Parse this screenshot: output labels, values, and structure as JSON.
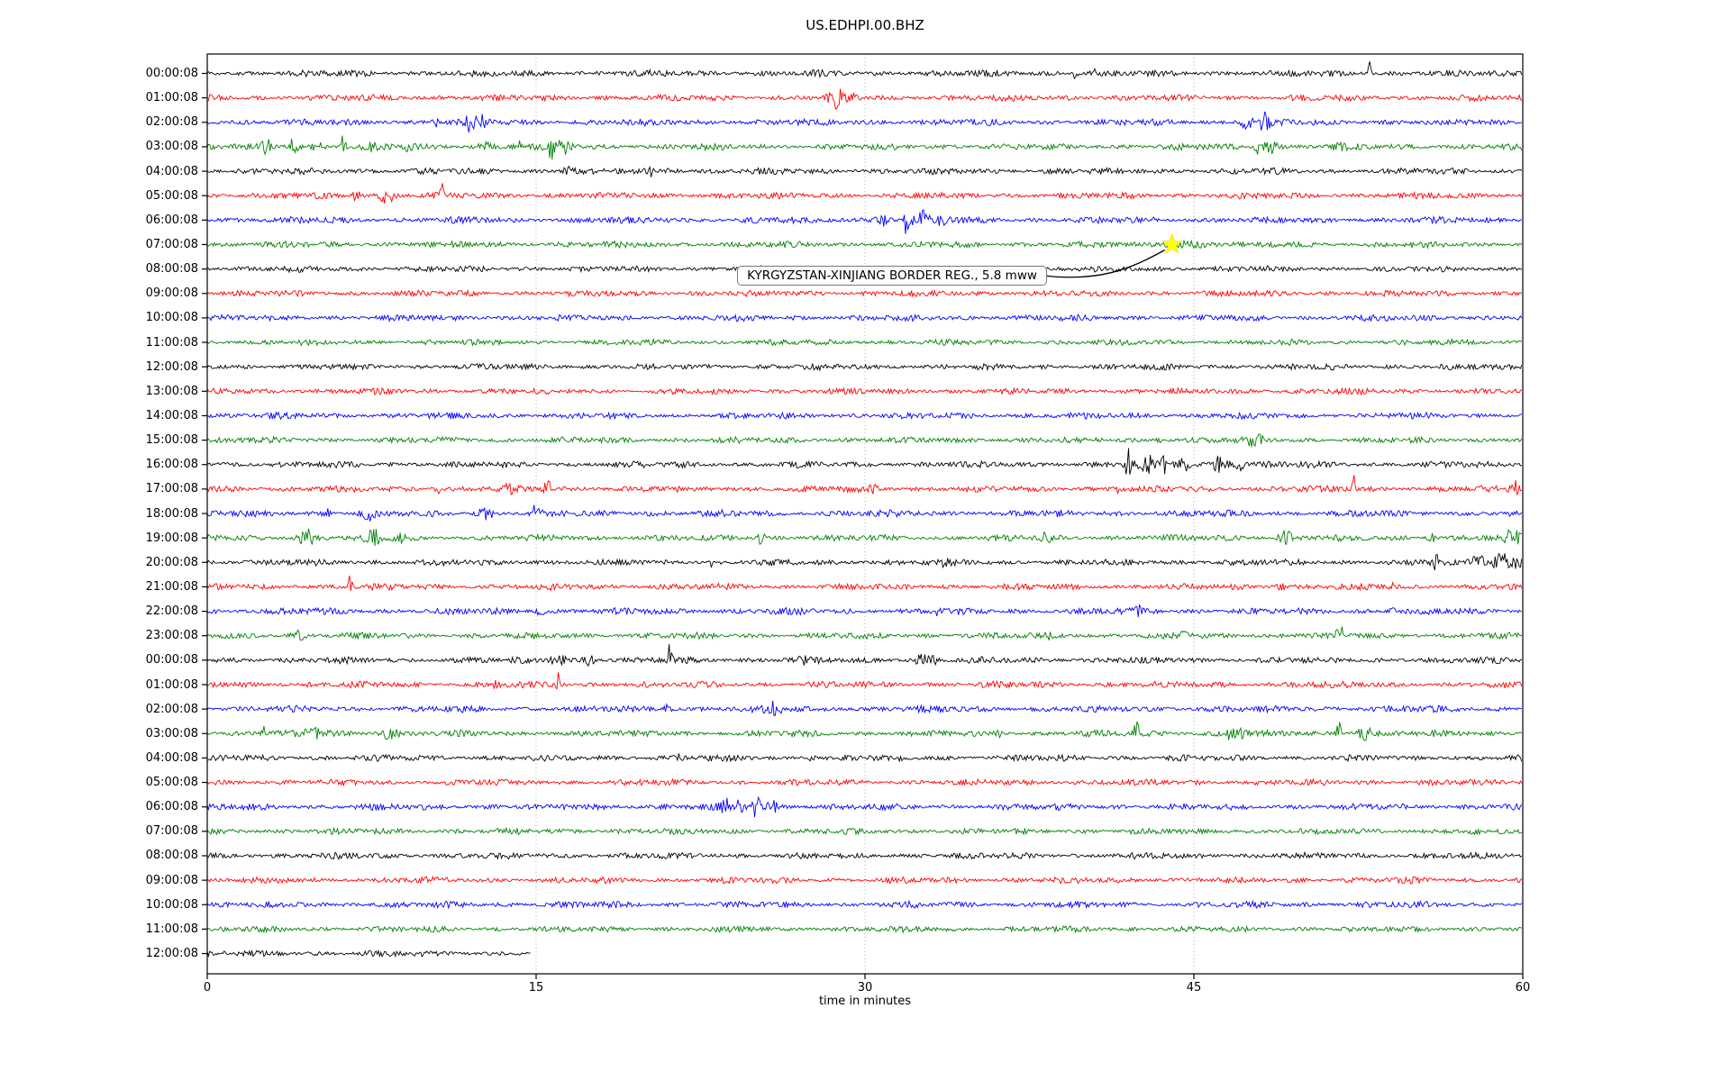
{
  "title": "US.EDHPI.00.BHZ",
  "xlabel": "time in minutes",
  "annotation": {
    "text": "KYRGYZSTAN-XINJIANG BORDER REG., 5.8 mww"
  },
  "colors": {
    "trace_cycle": [
      "#000000",
      "#ff0000",
      "#0000ff",
      "#008000"
    ],
    "grid": "#b5b5b5",
    "axis": "#000000",
    "star_fill": "#ffff00",
    "annotation_border": "#777777",
    "annotation_background": "#ffffff"
  },
  "chart_data": {
    "type": "line",
    "subtype": "seismogram-dayplot",
    "title": "US.EDHPI.00.BHZ",
    "xlabel": "time in minutes",
    "x_range": [
      0,
      60
    ],
    "xticks": [
      "0",
      "15",
      "30",
      "45",
      "60"
    ],
    "grid": "vertical dotted gridlines at 15-minute intervals",
    "legend": "none",
    "events": [
      {
        "label": "KYRGYZSTAN-XINJIANG BORDER REG., 5.8 mww",
        "row_index": 7,
        "row_label": "07:00:08",
        "minute": 44.0,
        "marker": "yellow-star"
      }
    ],
    "rows": [
      {
        "label": "00:00:08",
        "color": "#000000",
        "amp": 3.3,
        "features": [
          [
            39.6,
            0.07,
            13,
            -0.75
          ],
          [
            40.4,
            0.1,
            5,
            0.3
          ],
          [
            53.0,
            0.08,
            9,
            0.7
          ]
        ]
      },
      {
        "label": "01:00:08",
        "color": "#ff0000",
        "amp": 3.3,
        "features": [
          [
            28.7,
            0.3,
            9,
            0
          ],
          [
            29.4,
            0.15,
            5,
            0
          ]
        ]
      },
      {
        "label": "02:00:08",
        "color": "#0000ff",
        "amp": 3.4,
        "features": [
          [
            10.4,
            0.15,
            4,
            0
          ],
          [
            12.0,
            0.25,
            8,
            0
          ],
          [
            12.6,
            0.2,
            6,
            0
          ],
          [
            47.4,
            0.25,
            9,
            0
          ],
          [
            48.2,
            0.25,
            9,
            0
          ]
        ]
      },
      {
        "label": "03:00:08",
        "color": "#008000",
        "amp": 3.3,
        "features": [
          [
            2.7,
            0.25,
            7,
            0
          ],
          [
            3.9,
            0.25,
            8,
            0
          ],
          [
            5.0,
            0.25,
            5,
            0
          ],
          [
            6.2,
            0.1,
            10,
            0.4
          ],
          [
            7.5,
            0.2,
            5,
            0
          ],
          [
            9.2,
            0.2,
            5,
            0
          ],
          [
            12.6,
            0.3,
            5,
            0
          ],
          [
            14.2,
            0.2,
            5,
            0
          ],
          [
            15.7,
            0.09,
            22,
            -0.7
          ],
          [
            16.3,
            0.35,
            7,
            0
          ],
          [
            47.9,
            0.1,
            16,
            -0.4
          ],
          [
            48.5,
            0.35,
            7,
            0
          ],
          [
            51.6,
            0.25,
            6,
            0
          ]
        ]
      },
      {
        "label": "04:00:08",
        "color": "#000000",
        "amp": 3.3,
        "features": [
          [
            16.5,
            0.3,
            4,
            0
          ],
          [
            20.2,
            0.1,
            7,
            -0.4
          ],
          [
            21.2,
            0.2,
            4,
            0
          ]
        ]
      },
      {
        "label": "05:00:08",
        "color": "#ff0000",
        "amp": 3.3,
        "features": [
          [
            6.8,
            0.2,
            5,
            0
          ],
          [
            8.2,
            0.3,
            8,
            0
          ],
          [
            10.7,
            0.09,
            11,
            0.6
          ]
        ]
      },
      {
        "label": "06:00:08",
        "color": "#0000ff",
        "amp": 3.4,
        "features": [
          [
            30.8,
            0.3,
            6,
            0
          ],
          [
            31.9,
            0.1,
            26,
            -0.5
          ],
          [
            32.6,
            0.4,
            9,
            0
          ],
          [
            33.5,
            0.3,
            5,
            0
          ]
        ]
      },
      {
        "label": "07:00:08",
        "color": "#008000",
        "amp": 3.2,
        "features": [
          [
            44.5,
            1.2,
            2.5,
            0
          ]
        ]
      },
      {
        "label": "08:00:08",
        "color": "#000000",
        "amp": 3.1,
        "features": []
      },
      {
        "label": "09:00:08",
        "color": "#ff0000",
        "amp": 3.1,
        "features": []
      },
      {
        "label": "10:00:08",
        "color": "#0000ff",
        "amp": 3.2,
        "features": []
      },
      {
        "label": "11:00:08",
        "color": "#008000",
        "amp": 3.0,
        "features": []
      },
      {
        "label": "12:00:08",
        "color": "#000000",
        "amp": 3.1,
        "features": []
      },
      {
        "label": "13:00:08",
        "color": "#ff0000",
        "amp": 3.1,
        "features": []
      },
      {
        "label": "14:00:08",
        "color": "#0000ff",
        "amp": 3.2,
        "features": []
      },
      {
        "label": "15:00:08",
        "color": "#008000",
        "amp": 3.1,
        "features": [
          [
            43.5,
            0.3,
            3,
            0
          ],
          [
            47.8,
            0.4,
            5,
            0
          ]
        ]
      },
      {
        "label": "16:00:08",
        "color": "#000000",
        "amp": 3.3,
        "features": [
          [
            42.0,
            0.1,
            25,
            0.3
          ],
          [
            42.8,
            0.35,
            10,
            0
          ],
          [
            43.7,
            0.3,
            8,
            0
          ],
          [
            44.5,
            0.3,
            7,
            0
          ],
          [
            46.2,
            0.35,
            11,
            0
          ],
          [
            47.0,
            0.25,
            8,
            0
          ]
        ]
      },
      {
        "label": "17:00:08",
        "color": "#ff0000",
        "amp": 3.3,
        "features": [
          [
            10.5,
            0.2,
            4,
            0
          ],
          [
            13.7,
            0.2,
            6,
            0
          ],
          [
            15.5,
            0.15,
            9,
            0.3
          ],
          [
            30.4,
            0.2,
            5,
            0
          ],
          [
            41.5,
            0.15,
            4,
            0
          ],
          [
            52.3,
            0.07,
            11,
            0.7
          ],
          [
            59.8,
            0.25,
            12,
            0
          ]
        ]
      },
      {
        "label": "18:00:08",
        "color": "#0000ff",
        "amp": 3.4,
        "features": [
          [
            5.5,
            0.2,
            4,
            0
          ],
          [
            7.4,
            0.3,
            7,
            0
          ],
          [
            12.7,
            0.3,
            7,
            0
          ],
          [
            15.0,
            0.2,
            8,
            0
          ],
          [
            20.3,
            0.2,
            4,
            0
          ]
        ]
      },
      {
        "label": "19:00:08",
        "color": "#008000",
        "amp": 3.3,
        "features": [
          [
            4.6,
            0.4,
            8,
            0
          ],
          [
            7.6,
            0.3,
            7,
            0
          ],
          [
            8.8,
            0.25,
            5,
            0
          ],
          [
            25.3,
            0.2,
            7,
            0
          ],
          [
            38.3,
            0.25,
            4,
            0
          ],
          [
            49.2,
            0.3,
            7,
            0
          ],
          [
            55.8,
            0.2,
            5,
            0
          ],
          [
            59.5,
            0.3,
            8,
            0
          ]
        ]
      },
      {
        "label": "20:00:08",
        "color": "#000000",
        "amp": 3.3,
        "features": [
          [
            23.0,
            0.08,
            8,
            -0.5
          ],
          [
            33.6,
            0.15,
            4,
            0
          ],
          [
            56.0,
            0.2,
            9,
            0
          ],
          [
            58.0,
            0.3,
            8,
            0
          ],
          [
            59.0,
            0.35,
            12,
            0
          ],
          [
            59.7,
            0.2,
            10,
            0
          ]
        ]
      },
      {
        "label": "21:00:08",
        "color": "#ff0000",
        "amp": 3.3,
        "features": [
          [
            6.5,
            0.1,
            9,
            0.4
          ],
          [
            48.9,
            0.2,
            7,
            0
          ],
          [
            54.0,
            0.15,
            4,
            0
          ]
        ]
      },
      {
        "label": "22:00:08",
        "color": "#0000ff",
        "amp": 3.4,
        "features": [
          [
            15.2,
            0.15,
            6,
            0
          ],
          [
            33.3,
            0.15,
            4,
            0
          ],
          [
            42.5,
            0.15,
            5,
            0
          ],
          [
            54.0,
            0.15,
            4,
            0
          ]
        ]
      },
      {
        "label": "23:00:08",
        "color": "#008000",
        "amp": 3.2,
        "features": [
          [
            4.1,
            0.3,
            5,
            0
          ],
          [
            38.5,
            0.2,
            3,
            0
          ],
          [
            44.5,
            0.2,
            3,
            0
          ],
          [
            51.7,
            0.22,
            9,
            0.3
          ]
        ]
      },
      {
        "label": "00:00:08",
        "color": "#000000",
        "amp": 3.3,
        "features": [
          [
            16.0,
            0.4,
            6,
            0
          ],
          [
            17.4,
            0.25,
            5,
            0
          ],
          [
            21.1,
            0.09,
            15,
            0.5
          ],
          [
            27.2,
            0.2,
            4,
            0
          ],
          [
            32.8,
            0.4,
            8,
            0
          ]
        ]
      },
      {
        "label": "01:00:08",
        "color": "#ff0000",
        "amp": 3.3,
        "features": [
          [
            13.2,
            0.15,
            4,
            0
          ],
          [
            16.0,
            0.1,
            9,
            0.5
          ]
        ]
      },
      {
        "label": "02:00:08",
        "color": "#0000ff",
        "amp": 3.4,
        "features": [
          [
            21.0,
            0.2,
            4,
            0
          ],
          [
            25.8,
            0.35,
            7,
            0
          ]
        ]
      },
      {
        "label": "03:00:08",
        "color": "#008000",
        "amp": 3.3,
        "features": [
          [
            2.6,
            0.08,
            12,
            0.6
          ],
          [
            5.0,
            0.5,
            5,
            0
          ],
          [
            8.3,
            0.4,
            6,
            0
          ],
          [
            36.2,
            0.2,
            4,
            0
          ],
          [
            42.4,
            0.1,
            16,
            0.6
          ],
          [
            46.8,
            0.5,
            8,
            0
          ],
          [
            51.6,
            0.1,
            13,
            0.5
          ],
          [
            52.8,
            0.4,
            7,
            0
          ]
        ]
      },
      {
        "label": "04:00:08",
        "color": "#000000",
        "amp": 3.2,
        "features": [
          [
            21.5,
            0.15,
            3,
            0
          ],
          [
            27.6,
            0.1,
            5,
            0
          ]
        ]
      },
      {
        "label": "05:00:08",
        "color": "#ff0000",
        "amp": 3.2,
        "features": []
      },
      {
        "label": "06:00:08",
        "color": "#0000ff",
        "amp": 3.4,
        "features": [
          [
            23.6,
            0.25,
            8,
            0
          ],
          [
            24.3,
            0.1,
            20,
            -0.3
          ],
          [
            25.0,
            0.3,
            10,
            0
          ],
          [
            25.8,
            0.25,
            6,
            0
          ]
        ]
      },
      {
        "label": "07:00:08",
        "color": "#008000",
        "amp": 3.1,
        "features": []
      },
      {
        "label": "08:00:08",
        "color": "#000000",
        "amp": 3.2,
        "features": []
      },
      {
        "label": "09:00:08",
        "color": "#ff0000",
        "amp": 3.2,
        "features": []
      },
      {
        "label": "10:00:08",
        "color": "#0000ff",
        "amp": 3.3,
        "features": []
      },
      {
        "label": "11:00:08",
        "color": "#008000",
        "amp": 3.0,
        "features": []
      },
      {
        "label": "12:00:08",
        "color": "#000000",
        "amp": 3.2,
        "end_min": 14.75,
        "features": []
      }
    ]
  }
}
